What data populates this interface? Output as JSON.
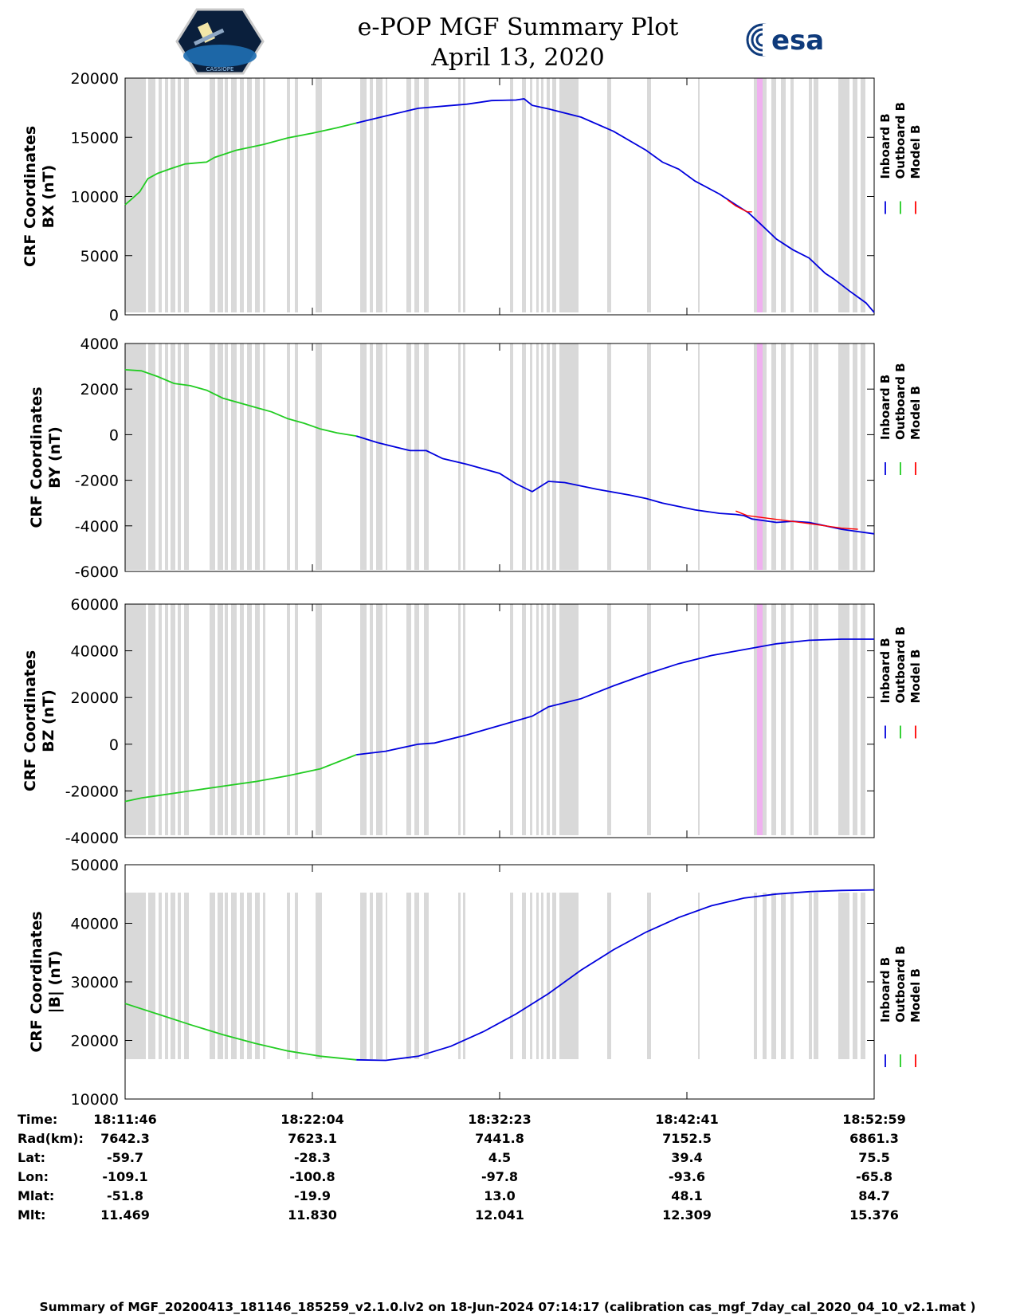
{
  "chart_data": {
    "type": "line",
    "title": "e-POP MGF Summary Plot",
    "subtitle": "April 13, 2020",
    "legend": [
      "Inboard B",
      "Outboard B",
      "Model B"
    ],
    "colors": {
      "inboard": "#0000dd",
      "outboard": "#22cc22",
      "model": "#ff0000",
      "gap": "#d9d9d9",
      "flag": "#f0b0f0"
    },
    "x_range_min": [
      0,
      41.2
    ],
    "panels": [
      {
        "id": "bx",
        "ylabel": [
          "CRF Coordinates",
          "BX (nT)"
        ],
        "ylim": [
          0,
          20000
        ],
        "yticks": [
          0,
          5000,
          10000,
          15000,
          20000
        ],
        "outboard": [
          [
            0,
            9300
          ],
          [
            0.5,
            9900
          ],
          [
            0.9,
            10400
          ],
          [
            1.4,
            11500
          ],
          [
            2,
            11950
          ],
          [
            2.8,
            12350
          ],
          [
            3.7,
            12750
          ],
          [
            4.8,
            12880
          ],
          [
            5,
            12900
          ],
          [
            5.5,
            13300
          ],
          [
            6.8,
            13900
          ],
          [
            8.5,
            14400
          ],
          [
            10,
            14950
          ],
          [
            11.5,
            15350
          ],
          [
            13,
            15800
          ],
          [
            14.2,
            16200
          ]
        ],
        "inboard": [
          [
            14.2,
            16200
          ],
          [
            16,
            16800
          ],
          [
            18,
            17450
          ],
          [
            21,
            17800
          ],
          [
            22.5,
            18100
          ],
          [
            24,
            18150
          ],
          [
            24.5,
            18250
          ],
          [
            25,
            17700
          ],
          [
            26,
            17400
          ],
          [
            28,
            16700
          ],
          [
            30,
            15500
          ],
          [
            32,
            13900
          ],
          [
            33,
            12900
          ],
          [
            34,
            12300
          ],
          [
            35,
            11300
          ],
          [
            36.5,
            10200
          ],
          [
            37.5,
            9300
          ],
          [
            38.3,
            8600
          ],
          [
            39,
            7700
          ],
          [
            40,
            6400
          ],
          [
            41,
            5500
          ],
          [
            42,
            4800
          ],
          [
            43,
            3500
          ],
          [
            43.5,
            3050
          ],
          [
            44.5,
            2000
          ],
          [
            45.5,
            1000
          ],
          [
            46,
            200
          ]
        ],
        "model": [
          [
            37,
            9700
          ],
          [
            37.5,
            9200
          ],
          [
            38.2,
            8700
          ],
          [
            38.5,
            8700
          ]
        ]
      },
      {
        "id": "by",
        "ylabel": [
          "CRF Coordinates",
          "BY (nT)"
        ],
        "ylim": [
          -6000,
          4000
        ],
        "yticks": [
          -6000,
          -4000,
          -2000,
          0,
          2000,
          4000
        ],
        "outboard": [
          [
            0,
            2850
          ],
          [
            1,
            2800
          ],
          [
            2,
            2550
          ],
          [
            3,
            2250
          ],
          [
            4,
            2150
          ],
          [
            5,
            1950
          ],
          [
            6,
            1600
          ],
          [
            7,
            1400
          ],
          [
            8,
            1200
          ],
          [
            9,
            1000
          ],
          [
            10,
            700
          ],
          [
            11,
            500
          ],
          [
            12,
            250
          ],
          [
            13,
            80
          ],
          [
            14.2,
            -60
          ]
        ],
        "inboard": [
          [
            14.2,
            -60
          ],
          [
            15.5,
            -350
          ],
          [
            17.5,
            -700
          ],
          [
            18.5,
            -700
          ],
          [
            19.5,
            -1050
          ],
          [
            21,
            -1300
          ],
          [
            23,
            -1700
          ],
          [
            24,
            -2150
          ],
          [
            25,
            -2500
          ],
          [
            26,
            -2050
          ],
          [
            27,
            -2100
          ],
          [
            29,
            -2400
          ],
          [
            31,
            -2650
          ],
          [
            32,
            -2800
          ],
          [
            33,
            -3000
          ],
          [
            35,
            -3300
          ],
          [
            36.5,
            -3450
          ],
          [
            37.5,
            -3500
          ],
          [
            38,
            -3550
          ],
          [
            38.5,
            -3700
          ],
          [
            39,
            -3750
          ],
          [
            40,
            -3850
          ],
          [
            41,
            -3800
          ],
          [
            42,
            -3850
          ],
          [
            43,
            -4000
          ],
          [
            44,
            -4150
          ],
          [
            45,
            -4250
          ],
          [
            46,
            -4350
          ]
        ],
        "model": [
          [
            37.5,
            -3350
          ],
          [
            38.2,
            -3550
          ],
          [
            42,
            -3900
          ],
          [
            44,
            -4100
          ],
          [
            45,
            -4150
          ]
        ]
      },
      {
        "id": "bz",
        "ylabel": [
          "CRF Coordinates",
          "BZ (nT)"
        ],
        "ylim": [
          -40000,
          60000
        ],
        "yticks": [
          -40000,
          -20000,
          0,
          20000,
          40000,
          60000
        ],
        "outboard": [
          [
            0,
            -24500
          ],
          [
            1,
            -23000
          ],
          [
            2,
            -22000
          ],
          [
            4,
            -20000
          ],
          [
            6,
            -18000
          ],
          [
            8,
            -16000
          ],
          [
            10,
            -13500
          ],
          [
            12,
            -10500
          ],
          [
            14.2,
            -4500
          ]
        ],
        "inboard": [
          [
            14.2,
            -4500
          ],
          [
            16,
            -3000
          ],
          [
            18,
            0
          ],
          [
            19,
            500
          ],
          [
            21,
            4000
          ],
          [
            23,
            8000
          ],
          [
            25,
            12000
          ],
          [
            26,
            16000
          ],
          [
            28,
            19500
          ],
          [
            30,
            25000
          ],
          [
            32,
            30000
          ],
          [
            34,
            34500
          ],
          [
            36,
            38000
          ],
          [
            38,
            40500
          ],
          [
            40,
            43000
          ],
          [
            42,
            44500
          ],
          [
            44,
            45000
          ],
          [
            46,
            45000
          ]
        ],
        "model": []
      },
      {
        "id": "bmag",
        "ylabel": [
          "CRF Coordinates",
          "|B| (nT)"
        ],
        "ylim": [
          10000,
          50000
        ],
        "yticks": [
          10000,
          20000,
          30000,
          40000,
          50000
        ],
        "outboard": [
          [
            0,
            26300
          ],
          [
            2,
            24500
          ],
          [
            4,
            22700
          ],
          [
            6,
            21000
          ],
          [
            8,
            19500
          ],
          [
            10,
            18200
          ],
          [
            12,
            17300
          ],
          [
            14.2,
            16700
          ]
        ],
        "inboard": [
          [
            14.2,
            16700
          ],
          [
            16,
            16600
          ],
          [
            18,
            17300
          ],
          [
            20,
            19000
          ],
          [
            22,
            21500
          ],
          [
            24,
            24500
          ],
          [
            26,
            28000
          ],
          [
            28,
            32000
          ],
          [
            30,
            35500
          ],
          [
            32,
            38500
          ],
          [
            34,
            41000
          ],
          [
            36,
            43000
          ],
          [
            38,
            44300
          ],
          [
            40,
            45000
          ],
          [
            42,
            45400
          ],
          [
            44,
            45600
          ],
          [
            46,
            45700
          ]
        ],
        "model": []
      }
    ],
    "x_tick_minutes": [
      0,
      10.3,
      20.6,
      30.9,
      41.2
    ]
  },
  "table": {
    "row_labels": [
      "Time:",
      "Rad(km):",
      "Lat:",
      "Lon:",
      "Mlat:",
      "Mlt:"
    ],
    "columns": [
      [
        "18:11:46",
        "7642.3",
        "-59.7",
        "-109.1",
        "-51.8",
        "11.469"
      ],
      [
        "18:22:04",
        "7623.1",
        "-28.3",
        "-100.8",
        "-19.9",
        "11.830"
      ],
      [
        "18:32:23",
        "7441.8",
        "4.5",
        "-97.8",
        "13.0",
        "12.041"
      ],
      [
        "18:42:41",
        "7152.5",
        "39.4",
        "-93.6",
        "48.1",
        "12.309"
      ],
      [
        "18:52:59",
        "6861.3",
        "75.5",
        "-65.8",
        "84.7",
        "15.376"
      ]
    ]
  },
  "footer": "Summary of MGF_20200413_181146_185259_v2.1.0.lv2 on 18-Jun-2024 07:14:17 (calibration cas_mgf_7day_cal_2020_04_10_v2.1.mat )",
  "logos": {
    "left_caption": "CASSIOPE",
    "right_text": "esa"
  }
}
